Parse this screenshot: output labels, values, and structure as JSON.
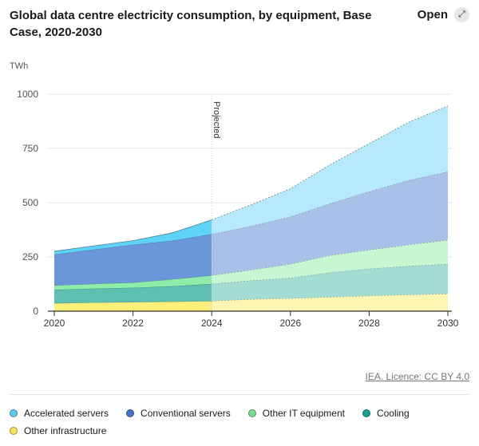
{
  "header": {
    "title": "Global data centre electricity consumption, by equipment, Base Case, 2020-2030",
    "open_label": "Open",
    "open_icon": "expand-arrows-icon"
  },
  "credit": "IEA. Licence: CC BY 4.0",
  "chart_data": {
    "type": "area",
    "stacked": true,
    "title": "Global data centre electricity consumption, by equipment, Base Case, 2020-2030",
    "ylabel": "TWh",
    "xlabel": "",
    "x": [
      2020,
      2021,
      2022,
      2023,
      2024,
      2025,
      2026,
      2027,
      2028,
      2029,
      2030
    ],
    "xticks": [
      "2020",
      "2022",
      "2024",
      "2026",
      "2028",
      "2030"
    ],
    "yticks": [
      "0",
      "250",
      "500",
      "750",
      "1000"
    ],
    "ylim": [
      0,
      1000
    ],
    "grid": true,
    "annotation": "Projected",
    "projection_start": 2024,
    "legend_position": "bottom",
    "series": [
      {
        "name": "Other infrastructure",
        "color": "#fff07a",
        "projected_color": "#fff5b3",
        "values": [
          37,
          40,
          42,
          44,
          47,
          55,
          59,
          65,
          71,
          76,
          80
        ]
      },
      {
        "name": "Cooling",
        "color": "#5cbfb0",
        "projected_color": "#a2dcd3",
        "values": [
          62,
          64,
          66,
          71,
          79,
          86,
          94,
          113,
          125,
          132,
          137
        ]
      },
      {
        "name": "Other IT equipment",
        "color": "#8eeda8",
        "projected_color": "#c6f7d2",
        "values": [
          20,
          22,
          24,
          32,
          39,
          49,
          64,
          79,
          86,
          98,
          111
        ]
      },
      {
        "name": "Conventional servers",
        "color": "#6b96d9",
        "projected_color": "#a9c0e8",
        "values": [
          142,
          158,
          174,
          178,
          190,
          202,
          218,
          239,
          269,
          297,
          315
        ]
      },
      {
        "name": "Accelerated servers",
        "color": "#5fd3f7",
        "projected_color": "#b4eafc",
        "values": [
          15,
          17,
          19,
          36,
          66,
          98,
          129,
          178,
          221,
          267,
          303
        ]
      }
    ]
  },
  "legend": [
    {
      "label": "Accelerated servers",
      "color": "#5ccbf0"
    },
    {
      "label": "Conventional servers",
      "color": "#4477cc"
    },
    {
      "label": "Other IT equipment",
      "color": "#77e08f"
    },
    {
      "label": "Cooling",
      "color": "#1aa090"
    },
    {
      "label": "Other infrastructure",
      "color": "#f7e35a"
    }
  ]
}
